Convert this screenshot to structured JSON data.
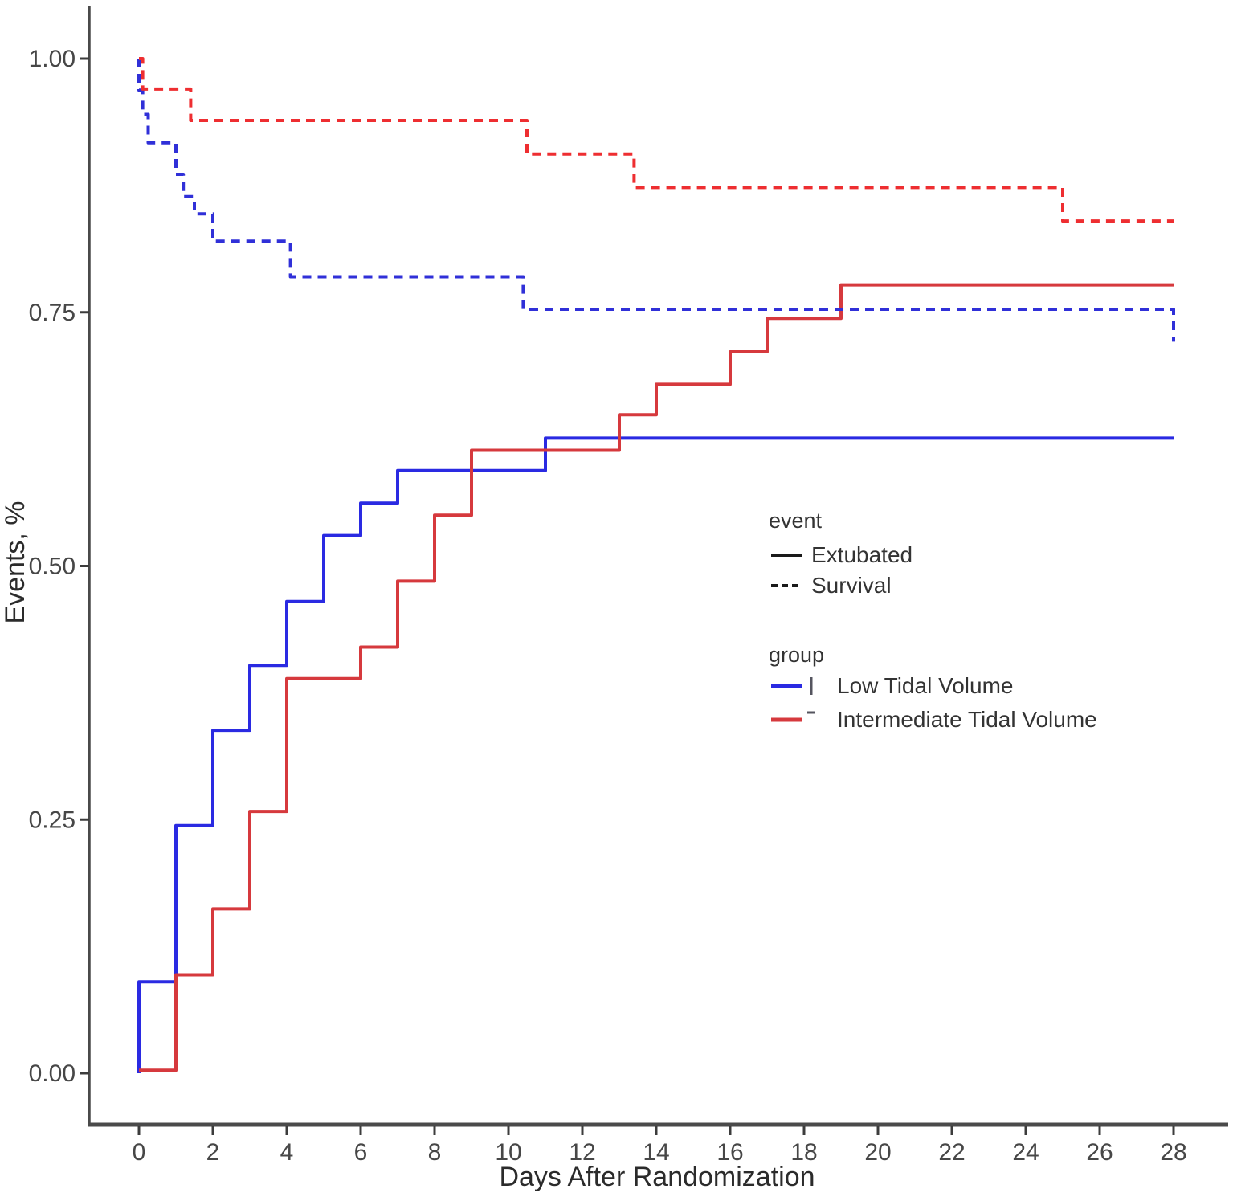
{
  "figure": {
    "background": "#ffffff"
  },
  "chart_data": {
    "type": "line",
    "subtype": "kaplan-meier-step",
    "title": "",
    "xlabel": "Days After Randomization",
    "ylabel": "Events, %",
    "xlim": [
      0,
      28
    ],
    "ylim": [
      0.0,
      1.0
    ],
    "grid": false,
    "legend_position": "inside-right-middle",
    "x_ticks": [
      0,
      2,
      4,
      6,
      8,
      10,
      12,
      14,
      16,
      18,
      20,
      22,
      24,
      26,
      28
    ],
    "y_ticks": [
      {
        "label": "0.00",
        "value": 0.0
      },
      {
        "label": "0.25",
        "value": 0.25
      },
      {
        "label": "0.50",
        "value": 0.5
      },
      {
        "label": "0.75",
        "value": 0.75
      },
      {
        "label": "1.00",
        "value": 1.0
      }
    ],
    "series": [
      {
        "name": "low-tidal-volume-extubated",
        "group": "Low Tidal Volume",
        "event": "Extubated",
        "color": "#2a2ae2",
        "dashed": false,
        "points": [
          [
            0,
            0.0
          ],
          [
            0,
            0.09
          ],
          [
            1,
            0.244
          ],
          [
            2,
            0.338
          ],
          [
            3,
            0.402
          ],
          [
            4,
            0.465
          ],
          [
            5,
            0.53
          ],
          [
            6,
            0.562
          ],
          [
            7,
            0.594
          ],
          [
            11,
            0.626
          ],
          [
            28,
            0.626
          ]
        ]
      },
      {
        "name": "intermediate-tidal-volume-extubated",
        "group": "Intermediate Tidal Volume",
        "event": "Extubated",
        "color": "#d6393d",
        "dashed": false,
        "points": [
          [
            0,
            0.003
          ],
          [
            1,
            0.097
          ],
          [
            2,
            0.162
          ],
          [
            3,
            0.258
          ],
          [
            4,
            0.389
          ],
          [
            6,
            0.42
          ],
          [
            7,
            0.485
          ],
          [
            8,
            0.55
          ],
          [
            9,
            0.614
          ],
          [
            13,
            0.649
          ],
          [
            14,
            0.679
          ],
          [
            16,
            0.711
          ],
          [
            17,
            0.744
          ],
          [
            19,
            0.777
          ],
          [
            28,
            0.777
          ]
        ]
      },
      {
        "name": "low-tidal-volume-survival",
        "group": "Low Tidal Volume",
        "event": "Survival",
        "color": "#3030d8",
        "dashed": true,
        "points": [
          [
            0,
            1.0
          ],
          [
            0,
            0.969
          ],
          [
            0.1,
            0.945
          ],
          [
            0.25,
            0.917
          ],
          [
            1,
            0.886
          ],
          [
            1.2,
            0.864
          ],
          [
            1.5,
            0.847
          ],
          [
            2,
            0.82
          ],
          [
            4.1,
            0.785
          ],
          [
            10.4,
            0.753
          ],
          [
            28,
            0.753
          ],
          [
            28,
            0.721
          ]
        ]
      },
      {
        "name": "intermediate-tidal-volume-survival",
        "group": "Intermediate Tidal Volume",
        "event": "Survival",
        "color": "#ee2e31",
        "dashed": true,
        "points": [
          [
            0,
            1.0
          ],
          [
            0.1,
            0.97
          ],
          [
            1.4,
            0.939
          ],
          [
            10.5,
            0.906
          ],
          [
            13.4,
            0.873
          ],
          [
            25,
            0.84
          ],
          [
            28,
            0.84
          ]
        ]
      }
    ]
  },
  "legend": {
    "event": {
      "title": "event",
      "items": [
        {
          "label": "Extubated",
          "style": "solid",
          "color": "#1a1a1a"
        },
        {
          "label": "Survival",
          "style": "dashed",
          "color": "#1a1a1a"
        }
      ]
    },
    "group": {
      "title": "group",
      "items": [
        {
          "label": "Low Tidal Volume",
          "color": "#2a2ae2",
          "marker": "bar"
        },
        {
          "label": "Intermediate Tidal Volume",
          "color": "#d6393d",
          "marker": "dash"
        }
      ]
    }
  },
  "colors": {
    "axis_line": "#4a4a4a",
    "tick_mark": "#3c3c3c",
    "tick_label": "#474747",
    "axis_title": "#2b2b2b",
    "legend_text": "#333333",
    "legend_key_extra": "#55555f"
  }
}
